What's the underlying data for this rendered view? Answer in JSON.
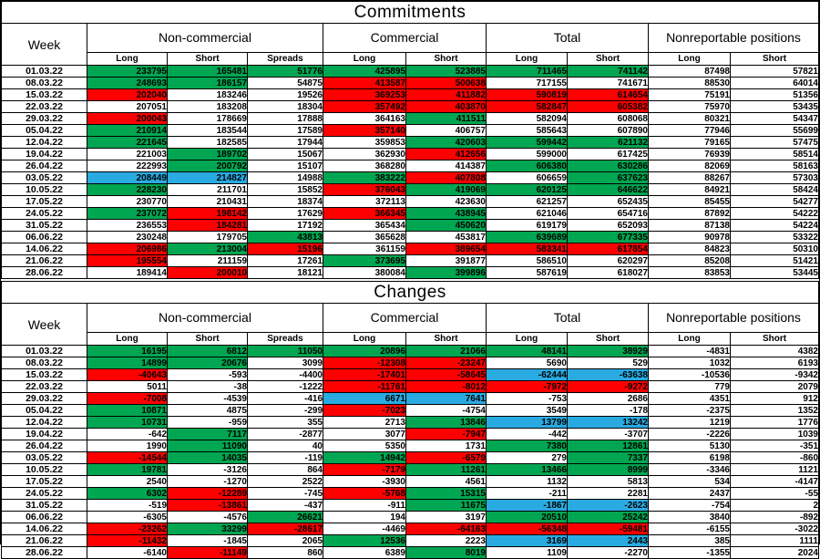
{
  "colors": {
    "green": "#00a651",
    "red": "#ff0000",
    "blue": "#29abe2",
    "white": "#ffffff"
  },
  "chart_data": [
    {
      "type": "table",
      "title": "Commitments",
      "week_header": "Week",
      "groups": [
        "Non-commercial",
        "Commercial",
        "Total",
        "Nonreportable positions"
      ],
      "sub_headers": [
        "Long",
        "Short",
        "Spreads",
        "Long",
        "Short",
        "Long",
        "Short",
        "Long",
        "Short"
      ],
      "rows": [
        {
          "w": "01.03.22",
          "v": [
            233795,
            165481,
            51776,
            425895,
            523885,
            711465,
            741142,
            87498,
            57821
          ],
          "c": "gggggggww"
        },
        {
          "w": "08.03.22",
          "v": [
            248693,
            186157,
            54875,
            413587,
            500638,
            717155,
            741671,
            88530,
            64014
          ],
          "c": "ggwrrwwww"
        },
        {
          "w": "15.03.22",
          "v": [
            202040,
            183246,
            19526,
            369253,
            411882,
            590819,
            614654,
            75191,
            51356
          ],
          "c": "rwwrrrrww"
        },
        {
          "w": "22.03.22",
          "v": [
            207051,
            183208,
            18304,
            357492,
            403870,
            582847,
            605382,
            75970,
            53435
          ],
          "c": "wwwrrrrww"
        },
        {
          "w": "29.03.22",
          "v": [
            200043,
            178669,
            17888,
            364163,
            411511,
            582094,
            608068,
            80321,
            54347
          ],
          "c": "rwwwgwwww"
        },
        {
          "w": "05.04.22",
          "v": [
            210914,
            183544,
            17589,
            357140,
            406757,
            585643,
            607890,
            77946,
            55699
          ],
          "c": "gwwrwwwww"
        },
        {
          "w": "12.04.22",
          "v": [
            221645,
            182585,
            17944,
            359853,
            420603,
            599442,
            621132,
            79165,
            57475
          ],
          "c": "gwwwgggww"
        },
        {
          "w": "19.04.22",
          "v": [
            221003,
            189702,
            15067,
            362930,
            412656,
            599000,
            617425,
            76939,
            58514
          ],
          "c": "wgwwrwwww"
        },
        {
          "w": "26.04.22",
          "v": [
            222993,
            200792,
            15107,
            368280,
            414387,
            606380,
            630286,
            82069,
            58163
          ],
          "c": "wgwwwggww"
        },
        {
          "w": "03.05.22",
          "v": [
            208449,
            214827,
            14988,
            383222,
            407808,
            606659,
            637623,
            88267,
            57303
          ],
          "c": "bbwgrwgww"
        },
        {
          "w": "10.05.22",
          "v": [
            228230,
            211701,
            15852,
            376043,
            419069,
            620125,
            646622,
            84921,
            58424
          ],
          "c": "gwwrgggww"
        },
        {
          "w": "17.05.22",
          "v": [
            230770,
            210431,
            18374,
            372113,
            423630,
            621257,
            652435,
            85455,
            54277
          ],
          "c": "wwwwwwwww"
        },
        {
          "w": "24.05.22",
          "v": [
            237072,
            198142,
            17629,
            366345,
            438945,
            621046,
            654716,
            87892,
            54222
          ],
          "c": "grwrgwwww"
        },
        {
          "w": "31.05.22",
          "v": [
            236553,
            184281,
            17192,
            365434,
            450620,
            619179,
            652093,
            87138,
            54224
          ],
          "c": "wrwwgwwww"
        },
        {
          "w": "06.06.22",
          "v": [
            230248,
            179705,
            43813,
            365628,
            453817,
            639689,
            677335,
            90978,
            53322
          ],
          "c": "wwgwwggww"
        },
        {
          "w": "14.06.22",
          "v": [
            206986,
            213004,
            15196,
            361159,
            389654,
            583341,
            617854,
            84823,
            50310
          ],
          "c": "rgrwrrrww"
        },
        {
          "w": "21.06.22",
          "v": [
            195554,
            211159,
            17261,
            373695,
            391877,
            586510,
            620297,
            85208,
            51421
          ],
          "c": "rwwgwwwww"
        },
        {
          "w": "28.06.22",
          "v": [
            189414,
            200010,
            18121,
            380084,
            399896,
            587619,
            618027,
            83853,
            53445
          ],
          "c": "wrwwgwwww"
        }
      ]
    },
    {
      "type": "table",
      "title": "Changes",
      "week_header": "Week",
      "groups": [
        "Non-commercial",
        "Commercial",
        "Total",
        "Nonreportable positions"
      ],
      "sub_headers": [
        "Long",
        "Short",
        "Spreads",
        "Long",
        "Short",
        "Long",
        "Short",
        "Long",
        "Short"
      ],
      "rows": [
        {
          "w": "01.03.22",
          "v": [
            16195,
            6812,
            11050,
            20896,
            21066,
            48141,
            38929,
            -4831,
            4382
          ],
          "c": "gggggggww"
        },
        {
          "w": "08.03.22",
          "v": [
            14899,
            20676,
            3099,
            -12308,
            -23247,
            5690,
            529,
            1032,
            6193
          ],
          "c": "ggwrrwwww"
        },
        {
          "w": "15.03.22",
          "v": [
            -40643,
            -593,
            -4400,
            -17401,
            -58645,
            -62444,
            -63638,
            -10536,
            -9342
          ],
          "c": "rwwrrbbww"
        },
        {
          "w": "22.03.22",
          "v": [
            5011,
            -38,
            -1222,
            -11761,
            -8012,
            -7972,
            -9272,
            779,
            2079
          ],
          "c": "wwwrrrrww"
        },
        {
          "w": "29.03.22",
          "v": [
            -7008,
            -4539,
            -416,
            6671,
            7641,
            -753,
            2686,
            4351,
            912
          ],
          "c": "rwwbbwwww"
        },
        {
          "w": "05.04.22",
          "v": [
            10871,
            4875,
            -299,
            -7023,
            -4754,
            3549,
            -178,
            -2375,
            1352
          ],
          "c": "gwwrwwwww"
        },
        {
          "w": "12.04.22",
          "v": [
            10731,
            -959,
            355,
            2713,
            13846,
            13799,
            13242,
            1219,
            1776
          ],
          "c": "gwwwgbbww"
        },
        {
          "w": "19.04.22",
          "v": [
            -642,
            7117,
            -2877,
            3077,
            -7947,
            -442,
            -3707,
            -2226,
            1039
          ],
          "c": "wgwwrwwww"
        },
        {
          "w": "26.04.22",
          "v": [
            1990,
            11090,
            40,
            5350,
            1731,
            7380,
            12861,
            5130,
            -351
          ],
          "c": "wgwwwggww"
        },
        {
          "w": "03.05.22",
          "v": [
            -14544,
            14035,
            -119,
            14942,
            -6579,
            279,
            7337,
            6198,
            -860
          ],
          "c": "rgwgrwgww"
        },
        {
          "w": "10.05.22",
          "v": [
            19781,
            -3126,
            864,
            -7179,
            11261,
            13466,
            8999,
            -3346,
            1121
          ],
          "c": "gwwrgggww"
        },
        {
          "w": "17.05.22",
          "v": [
            2540,
            -1270,
            2522,
            -3930,
            4561,
            1132,
            5813,
            534,
            -4147
          ],
          "c": "wwwwwwwww"
        },
        {
          "w": "24.05.22",
          "v": [
            6302,
            -12289,
            -745,
            -5768,
            15315,
            -211,
            2281,
            2437,
            -55
          ],
          "c": "grwrgwwww"
        },
        {
          "w": "31.05.22",
          "v": [
            -519,
            -13861,
            -437,
            -911,
            11675,
            -1867,
            -2623,
            -754,
            2
          ],
          "c": "wrwwgbbww"
        },
        {
          "w": "06.06.22",
          "v": [
            -6305,
            -4576,
            26621,
            194,
            3197,
            20510,
            25242,
            3840,
            -892
          ],
          "c": "wwgwwggww"
        },
        {
          "w": "14.06.22",
          "v": [
            -23262,
            33299,
            -28617,
            -4469,
            -64163,
            -56348,
            -59481,
            -6155,
            -3022
          ],
          "c": "rgrwrrrww"
        },
        {
          "w": "21.06.22",
          "v": [
            -11432,
            -1845,
            2065,
            12536,
            2223,
            3169,
            2443,
            385,
            1111
          ],
          "c": "rwwgwbbww"
        },
        {
          "w": "28.06.22",
          "v": [
            -6140,
            -11149,
            860,
            6389,
            8019,
            1109,
            -2270,
            -1355,
            2024
          ],
          "c": "wrwwgwwww"
        }
      ]
    }
  ]
}
